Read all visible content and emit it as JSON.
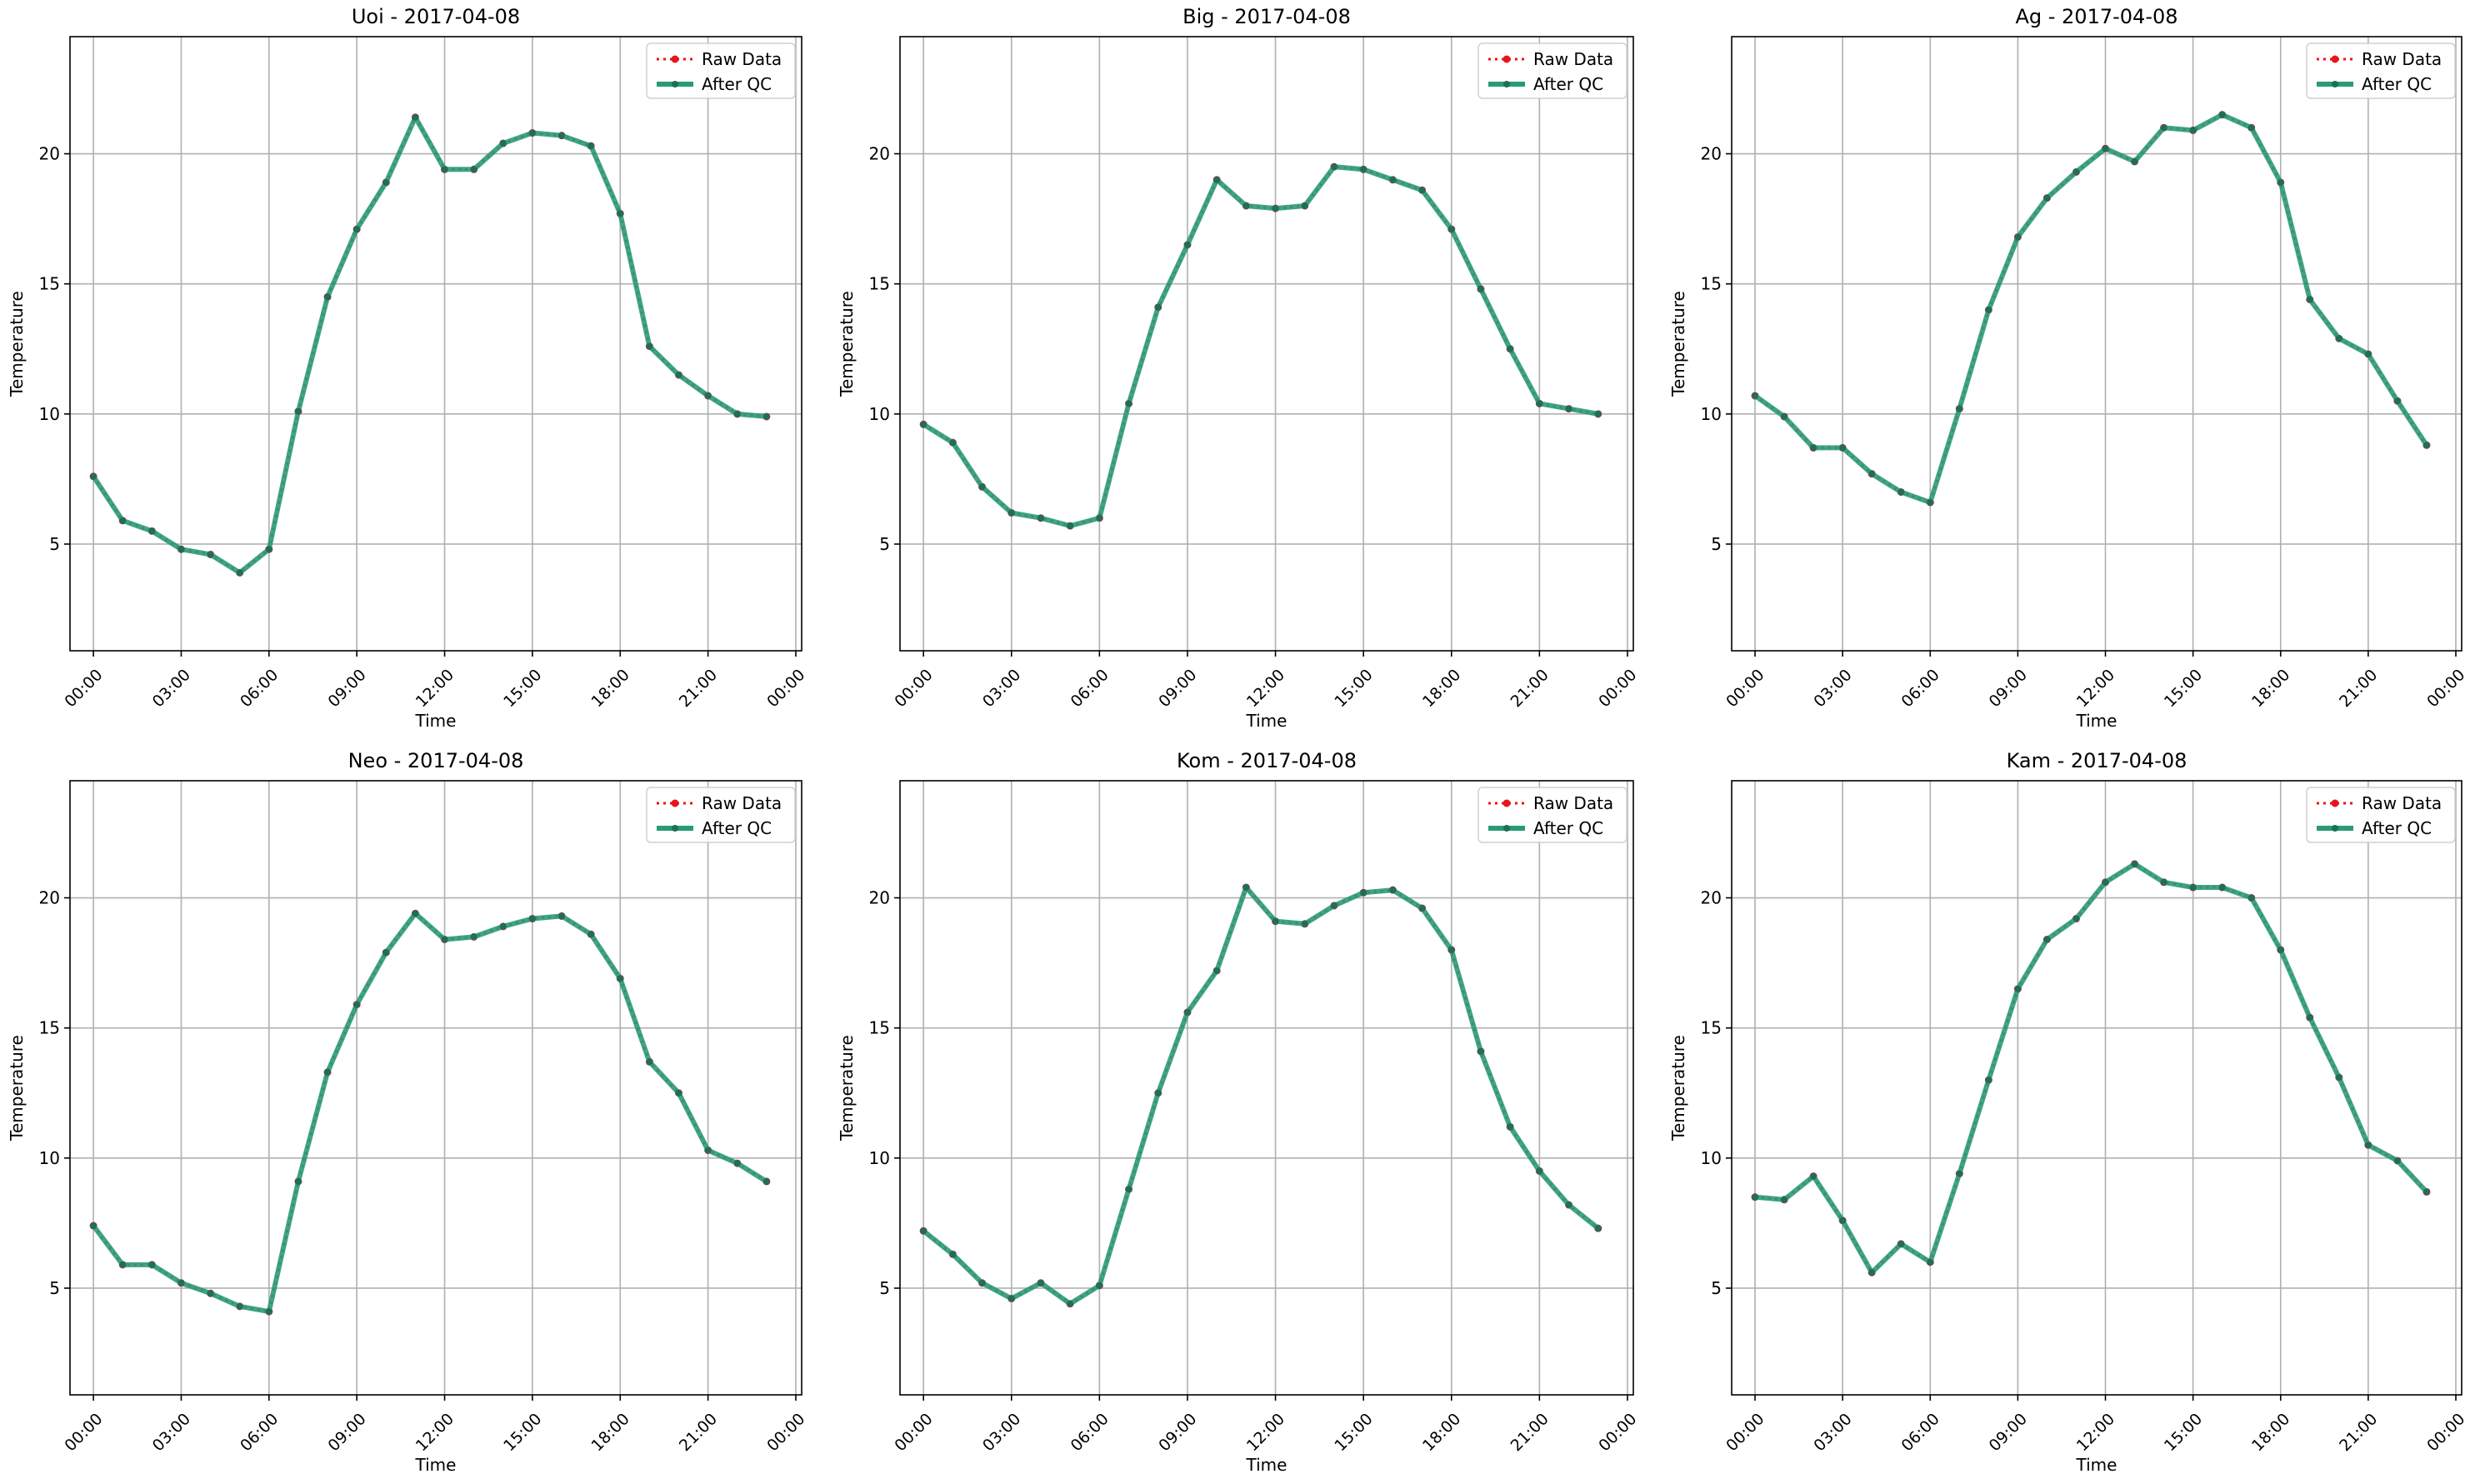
{
  "colors": {
    "raw": "#e8141c",
    "qc": "#2a9a78",
    "qc_marker": "#1f6f58",
    "grid": "#b0b0b0",
    "axes": "#000000"
  },
  "legend": {
    "raw": "Raw Data",
    "qc": "After QC",
    "position": "top-right"
  },
  "chart_data": [
    {
      "type": "line",
      "title": "Uoi - 2017-04-08",
      "xlabel": "Time",
      "ylabel": "Temperature",
      "x": [
        "00:00",
        "01:00",
        "02:00",
        "03:00",
        "04:00",
        "05:00",
        "06:00",
        "07:00",
        "08:00",
        "09:00",
        "10:00",
        "11:00",
        "12:00",
        "13:00",
        "14:00",
        "15:00",
        "16:00",
        "17:00",
        "18:00",
        "19:00",
        "20:00",
        "21:00",
        "22:00",
        "23:00"
      ],
      "xticks": [
        "00:00",
        "03:00",
        "06:00",
        "09:00",
        "12:00",
        "15:00",
        "18:00",
        "21:00",
        "00:00"
      ],
      "yticks": [
        5,
        10,
        15,
        20
      ],
      "ylim": [
        0.9,
        24.5
      ],
      "grid": true,
      "series": [
        {
          "name": "Raw Data",
          "values": [
            7.6,
            5.9,
            5.5,
            4.8,
            4.6,
            3.9,
            4.8,
            10.1,
            14.5,
            17.1,
            18.9,
            21.4,
            19.4,
            19.4,
            20.4,
            20.8,
            20.7,
            20.3,
            17.7,
            12.6,
            11.5,
            10.7,
            10.0,
            9.9
          ]
        },
        {
          "name": "After QC",
          "values": [
            7.6,
            5.9,
            5.5,
            4.8,
            4.6,
            3.9,
            4.8,
            10.1,
            14.5,
            17.1,
            18.9,
            21.4,
            19.4,
            19.4,
            20.4,
            20.8,
            20.7,
            20.3,
            17.7,
            12.6,
            11.5,
            10.7,
            10.0,
            9.9
          ]
        }
      ]
    },
    {
      "type": "line",
      "title": "Big - 2017-04-08",
      "xlabel": "Time",
      "ylabel": "Temperature",
      "x": [
        "00:00",
        "01:00",
        "02:00",
        "03:00",
        "04:00",
        "05:00",
        "06:00",
        "07:00",
        "08:00",
        "09:00",
        "10:00",
        "11:00",
        "12:00",
        "13:00",
        "14:00",
        "15:00",
        "16:00",
        "17:00",
        "18:00",
        "19:00",
        "20:00",
        "21:00",
        "22:00",
        "23:00"
      ],
      "xticks": [
        "00:00",
        "03:00",
        "06:00",
        "09:00",
        "12:00",
        "15:00",
        "18:00",
        "21:00",
        "00:00"
      ],
      "yticks": [
        5,
        10,
        15,
        20
      ],
      "ylim": [
        0.9,
        24.5
      ],
      "grid": true,
      "series": [
        {
          "name": "Raw Data",
          "values": [
            9.6,
            8.9,
            7.2,
            6.2,
            6.0,
            5.7,
            6.0,
            10.4,
            14.1,
            16.5,
            19.0,
            18.0,
            17.9,
            18.0,
            19.5,
            19.4,
            19.0,
            18.6,
            17.1,
            14.8,
            12.5,
            10.4,
            10.2,
            10.0
          ]
        },
        {
          "name": "After QC",
          "values": [
            9.6,
            8.9,
            7.2,
            6.2,
            6.0,
            5.7,
            6.0,
            10.4,
            14.1,
            16.5,
            19.0,
            18.0,
            17.9,
            18.0,
            19.5,
            19.4,
            19.0,
            18.6,
            17.1,
            14.8,
            12.5,
            10.4,
            10.2,
            10.0
          ]
        }
      ]
    },
    {
      "type": "line",
      "title": "Ag - 2017-04-08",
      "xlabel": "Time",
      "ylabel": "Temperature",
      "x": [
        "00:00",
        "01:00",
        "02:00",
        "03:00",
        "04:00",
        "05:00",
        "06:00",
        "07:00",
        "08:00",
        "09:00",
        "10:00",
        "11:00",
        "12:00",
        "13:00",
        "14:00",
        "15:00",
        "16:00",
        "17:00",
        "18:00",
        "19:00",
        "20:00",
        "21:00",
        "22:00",
        "23:00"
      ],
      "xticks": [
        "00:00",
        "03:00",
        "06:00",
        "09:00",
        "12:00",
        "15:00",
        "18:00",
        "21:00",
        "00:00"
      ],
      "yticks": [
        5,
        10,
        15,
        20
      ],
      "ylim": [
        0.9,
        24.5
      ],
      "grid": true,
      "series": [
        {
          "name": "Raw Data",
          "values": [
            10.7,
            9.9,
            8.7,
            8.7,
            7.7,
            7.0,
            6.6,
            10.2,
            14.0,
            16.8,
            18.3,
            19.3,
            20.2,
            19.7,
            21.0,
            20.9,
            21.5,
            21.0,
            18.9,
            14.4,
            12.9,
            12.3,
            10.5,
            8.8
          ]
        },
        {
          "name": "After QC",
          "values": [
            10.7,
            9.9,
            8.7,
            8.7,
            7.7,
            7.0,
            6.6,
            10.2,
            14.0,
            16.8,
            18.3,
            19.3,
            20.2,
            19.7,
            21.0,
            20.9,
            21.5,
            21.0,
            18.9,
            14.4,
            12.9,
            12.3,
            10.5,
            8.8
          ]
        }
      ]
    },
    {
      "type": "line",
      "title": "Neo - 2017-04-08",
      "xlabel": "Time",
      "ylabel": "Temperature",
      "x": [
        "00:00",
        "01:00",
        "02:00",
        "03:00",
        "04:00",
        "05:00",
        "06:00",
        "07:00",
        "08:00",
        "09:00",
        "10:00",
        "11:00",
        "12:00",
        "13:00",
        "14:00",
        "15:00",
        "16:00",
        "17:00",
        "18:00",
        "19:00",
        "20:00",
        "21:00",
        "22:00",
        "23:00"
      ],
      "xticks": [
        "00:00",
        "03:00",
        "06:00",
        "09:00",
        "12:00",
        "15:00",
        "18:00",
        "21:00",
        "00:00"
      ],
      "yticks": [
        5,
        10,
        15,
        20
      ],
      "ylim": [
        0.9,
        24.5
      ],
      "grid": true,
      "series": [
        {
          "name": "Raw Data",
          "values": [
            7.4,
            5.9,
            5.9,
            5.2,
            4.8,
            4.3,
            4.1,
            9.1,
            13.3,
            15.9,
            17.9,
            19.4,
            18.4,
            18.5,
            18.9,
            19.2,
            19.3,
            18.6,
            16.9,
            13.7,
            12.5,
            10.3,
            9.8,
            9.1
          ]
        },
        {
          "name": "After QC",
          "values": [
            7.4,
            5.9,
            5.9,
            5.2,
            4.8,
            4.3,
            4.1,
            9.1,
            13.3,
            15.9,
            17.9,
            19.4,
            18.4,
            18.5,
            18.9,
            19.2,
            19.3,
            18.6,
            16.9,
            13.7,
            12.5,
            10.3,
            9.8,
            9.1
          ]
        }
      ]
    },
    {
      "type": "line",
      "title": "Kom - 2017-04-08",
      "xlabel": "Time",
      "ylabel": "Temperature",
      "x": [
        "00:00",
        "01:00",
        "02:00",
        "03:00",
        "04:00",
        "05:00",
        "06:00",
        "07:00",
        "08:00",
        "09:00",
        "10:00",
        "11:00",
        "12:00",
        "13:00",
        "14:00",
        "15:00",
        "16:00",
        "17:00",
        "18:00",
        "19:00",
        "20:00",
        "21:00",
        "22:00",
        "23:00"
      ],
      "xticks": [
        "00:00",
        "03:00",
        "06:00",
        "09:00",
        "12:00",
        "15:00",
        "18:00",
        "21:00",
        "00:00"
      ],
      "yticks": [
        5,
        10,
        15,
        20
      ],
      "ylim": [
        0.9,
        24.5
      ],
      "grid": true,
      "series": [
        {
          "name": "Raw Data",
          "values": [
            7.2,
            6.3,
            5.2,
            4.6,
            5.2,
            4.4,
            5.1,
            8.8,
            12.5,
            15.6,
            17.2,
            20.4,
            19.1,
            19.0,
            19.7,
            20.2,
            20.3,
            19.6,
            18.0,
            14.1,
            11.2,
            9.5,
            8.2,
            7.3
          ]
        },
        {
          "name": "After QC",
          "values": [
            7.2,
            6.3,
            5.2,
            4.6,
            5.2,
            4.4,
            5.1,
            8.8,
            12.5,
            15.6,
            17.2,
            20.4,
            19.1,
            19.0,
            19.7,
            20.2,
            20.3,
            19.6,
            18.0,
            14.1,
            11.2,
            9.5,
            8.2,
            7.3
          ]
        }
      ]
    },
    {
      "type": "line",
      "title": "Kam - 2017-04-08",
      "xlabel": "Time",
      "ylabel": "Temperature",
      "x": [
        "00:00",
        "01:00",
        "02:00",
        "03:00",
        "04:00",
        "05:00",
        "06:00",
        "07:00",
        "08:00",
        "09:00",
        "10:00",
        "11:00",
        "12:00",
        "13:00",
        "14:00",
        "15:00",
        "16:00",
        "17:00",
        "18:00",
        "19:00",
        "20:00",
        "21:00",
        "22:00",
        "23:00"
      ],
      "xticks": [
        "00:00",
        "03:00",
        "06:00",
        "09:00",
        "12:00",
        "15:00",
        "18:00",
        "21:00",
        "00:00"
      ],
      "yticks": [
        5,
        10,
        15,
        20
      ],
      "ylim": [
        0.9,
        24.5
      ],
      "grid": true,
      "series": [
        {
          "name": "Raw Data",
          "values": [
            8.5,
            8.4,
            9.3,
            7.6,
            5.6,
            6.7,
            6.0,
            9.4,
            13.0,
            16.5,
            18.4,
            19.2,
            20.6,
            21.3,
            20.6,
            20.4,
            20.4,
            20.0,
            18.0,
            15.4,
            13.1,
            10.5,
            9.9,
            8.7
          ]
        },
        {
          "name": "After QC",
          "values": [
            8.5,
            8.4,
            9.3,
            7.6,
            5.6,
            6.7,
            6.0,
            9.4,
            13.0,
            16.5,
            18.4,
            19.2,
            20.6,
            21.3,
            20.6,
            20.4,
            20.4,
            20.0,
            18.0,
            15.4,
            13.1,
            10.5,
            9.9,
            8.7
          ]
        }
      ]
    }
  ]
}
